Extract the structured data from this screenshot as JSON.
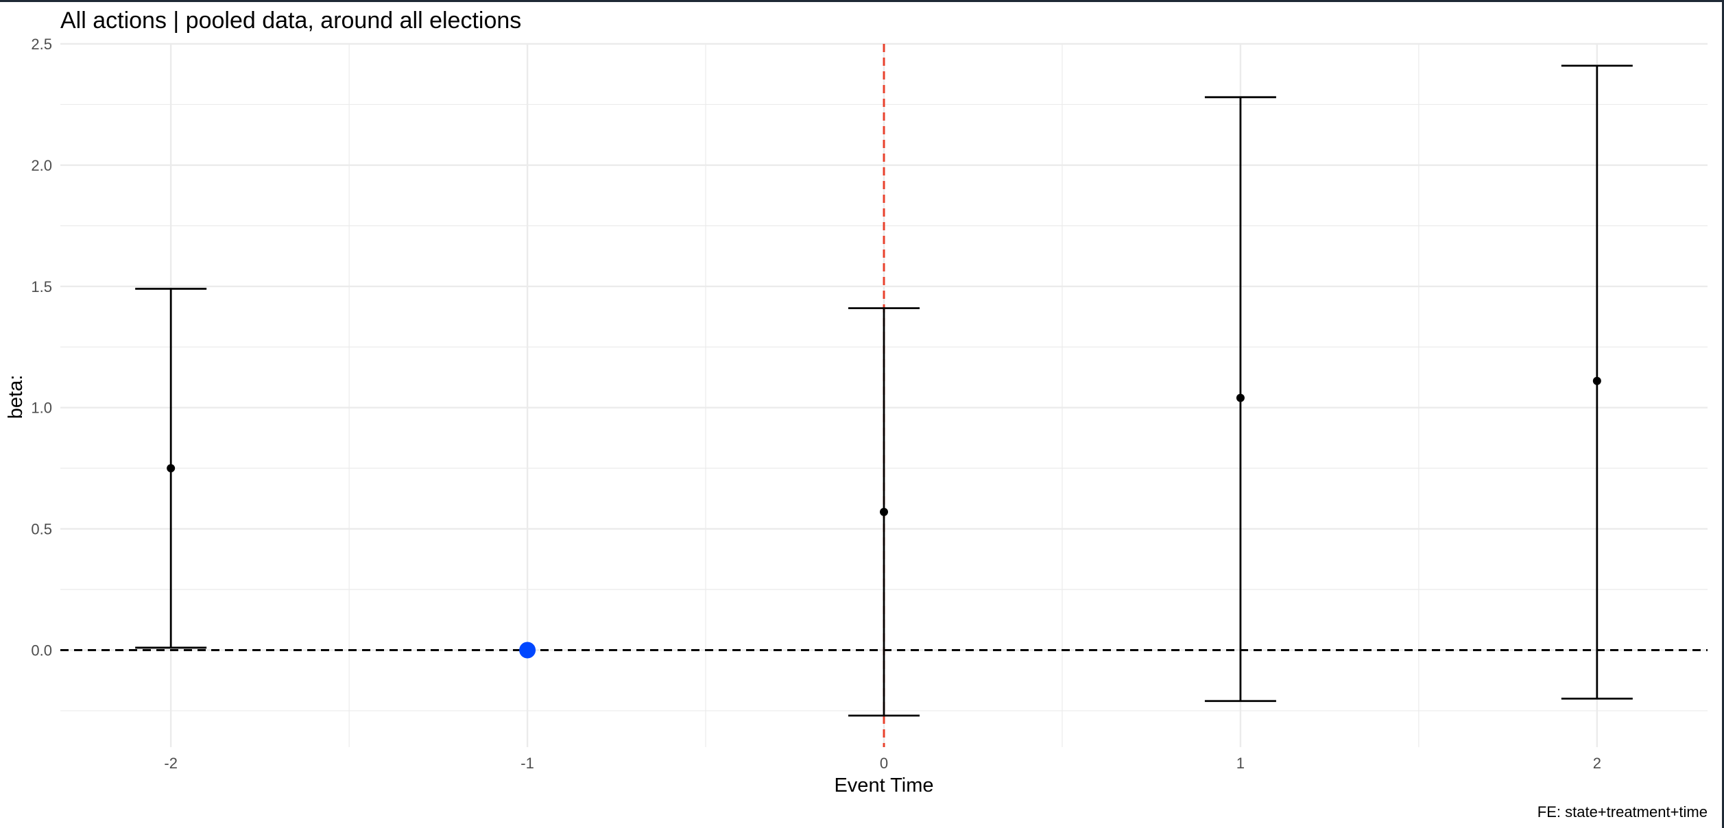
{
  "chart_data": {
    "type": "scatter",
    "subtype": "event-study coefficient plot with error bars",
    "title": "All actions | pooled data, around all elections",
    "xlabel": "Event Time",
    "ylabel": "beta:",
    "caption": "FE: state+treatment+time",
    "xlim": [
      -2.31,
      2.31
    ],
    "ylim": [
      -0.4,
      2.5
    ],
    "x_ticks": [
      -2,
      -1,
      0,
      1,
      2
    ],
    "x_tick_labels": [
      "-2",
      "-1",
      "0",
      "1",
      "2"
    ],
    "y_ticks": [
      0.0,
      0.5,
      1.0,
      1.5,
      2.0,
      2.5
    ],
    "y_tick_labels": [
      "0.0",
      "0.5",
      "1.0",
      "1.5",
      "2.0",
      "2.5"
    ],
    "grid": true,
    "reference_lines": {
      "horizontal": {
        "y": 0,
        "style": "dashed",
        "color": "#000000"
      },
      "vertical": {
        "x": 0,
        "style": "dashed",
        "color": "#e8412c"
      }
    },
    "points": [
      {
        "x": -2,
        "y": 0.75,
        "lower": 0.01,
        "upper": 1.49
      },
      {
        "x": 0,
        "y": 0.57,
        "lower": -0.27,
        "upper": 1.41
      },
      {
        "x": 1,
        "y": 1.04,
        "lower": -0.21,
        "upper": 2.28
      },
      {
        "x": 2,
        "y": 1.11,
        "lower": -0.2,
        "upper": 2.41
      }
    ],
    "reference_point": {
      "x": -1,
      "y": 0,
      "color": "#0047ff"
    },
    "colors": {
      "points": "#000000",
      "grid": "#ebebeb",
      "reference_point": "#0047ff",
      "vertical_line": "#e8412c"
    }
  }
}
